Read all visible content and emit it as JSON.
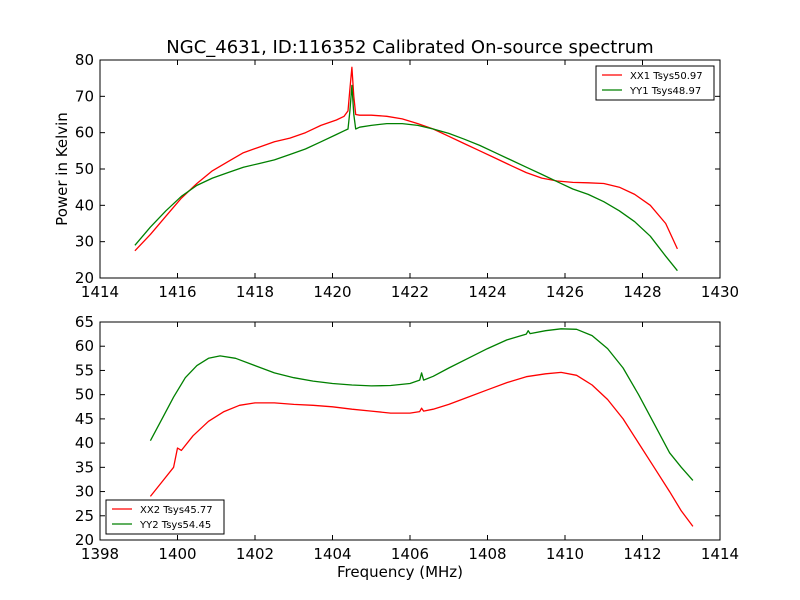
{
  "figure": {
    "title": "NGC_4631, ID:116352 Calibrated On-source spectrum"
  },
  "chart_data": [
    {
      "type": "line",
      "ylabel": "Power in Kelvin",
      "xlabel": "",
      "xlim": [
        1414,
        1430
      ],
      "ylim": [
        20,
        80
      ],
      "xticks": [
        1414,
        1416,
        1418,
        1420,
        1422,
        1424,
        1426,
        1428,
        1430
      ],
      "yticks": [
        20,
        30,
        40,
        50,
        60,
        70,
        80
      ],
      "legend_position": "upper-right",
      "series": [
        {
          "name": "XX1 Tsys50.97",
          "color": "#ff0000",
          "x": [
            1414.9,
            1415.3,
            1415.7,
            1416.1,
            1416.5,
            1416.9,
            1417.3,
            1417.7,
            1418.1,
            1418.5,
            1418.9,
            1419.3,
            1419.7,
            1420.1,
            1420.3,
            1420.4,
            1420.45,
            1420.5,
            1420.55,
            1420.6,
            1420.7,
            1421.0,
            1421.4,
            1421.8,
            1422.2,
            1422.6,
            1423.0,
            1423.4,
            1423.8,
            1424.2,
            1424.6,
            1425.0,
            1425.4,
            1425.8,
            1426.2,
            1426.6,
            1427.0,
            1427.4,
            1427.8,
            1428.2,
            1428.6,
            1428.9
          ],
          "y": [
            27.5,
            32.0,
            37.0,
            42.0,
            46.0,
            49.5,
            52.0,
            54.5,
            56.0,
            57.5,
            58.5,
            60.0,
            62.0,
            63.5,
            64.5,
            66.0,
            72.0,
            78.0,
            70.0,
            65.0,
            64.8,
            64.8,
            64.5,
            63.8,
            62.5,
            61.0,
            59.0,
            57.0,
            55.0,
            53.0,
            51.0,
            49.0,
            47.5,
            46.7,
            46.3,
            46.2,
            46.0,
            45.0,
            43.0,
            40.0,
            35.0,
            28.0
          ]
        },
        {
          "name": "YY1 Tsys48.97",
          "color": "#008000",
          "x": [
            1414.9,
            1415.3,
            1415.7,
            1416.1,
            1416.5,
            1416.9,
            1417.3,
            1417.7,
            1418.1,
            1418.5,
            1418.9,
            1419.3,
            1419.7,
            1420.1,
            1420.3,
            1420.4,
            1420.45,
            1420.5,
            1420.55,
            1420.6,
            1420.7,
            1421.0,
            1421.4,
            1421.8,
            1422.2,
            1422.6,
            1423.0,
            1423.4,
            1423.8,
            1424.2,
            1424.6,
            1425.0,
            1425.4,
            1425.8,
            1426.2,
            1426.6,
            1427.0,
            1427.4,
            1427.8,
            1428.2,
            1428.6,
            1428.9
          ],
          "y": [
            29.0,
            34.0,
            38.5,
            42.5,
            45.5,
            47.5,
            49.0,
            50.5,
            51.5,
            52.5,
            54.0,
            55.5,
            57.5,
            59.5,
            60.5,
            61.0,
            66.0,
            73.0,
            65.0,
            61.0,
            61.5,
            62.0,
            62.5,
            62.5,
            62.0,
            61.0,
            59.8,
            58.2,
            56.5,
            54.5,
            52.5,
            50.5,
            48.5,
            46.5,
            44.5,
            43.0,
            41.0,
            38.5,
            35.5,
            31.5,
            26.0,
            22.0
          ]
        }
      ]
    },
    {
      "type": "line",
      "xlabel": "Frequency (MHz)",
      "ylabel": "",
      "xlim": [
        1398,
        1414
      ],
      "ylim": [
        20,
        65
      ],
      "xticks": [
        1398,
        1400,
        1402,
        1404,
        1406,
        1408,
        1410,
        1412,
        1414
      ],
      "yticks": [
        20,
        25,
        30,
        35,
        40,
        45,
        50,
        55,
        60,
        65
      ],
      "legend_position": "lower-left",
      "series": [
        {
          "name": "XX2 Tsys45.77",
          "color": "#ff0000",
          "x": [
            1399.3,
            1399.6,
            1399.9,
            1400.0,
            1400.1,
            1400.4,
            1400.8,
            1401.2,
            1401.6,
            1402.0,
            1402.5,
            1403.0,
            1403.5,
            1404.0,
            1404.5,
            1405.0,
            1405.5,
            1406.0,
            1406.25,
            1406.3,
            1406.35,
            1406.6,
            1407.0,
            1407.5,
            1408.0,
            1408.5,
            1409.0,
            1409.5,
            1409.9,
            1410.3,
            1410.7,
            1411.1,
            1411.5,
            1411.9,
            1412.3,
            1412.7,
            1413.0,
            1413.3
          ],
          "y": [
            29.0,
            32.0,
            35.0,
            39.0,
            38.5,
            41.5,
            44.5,
            46.5,
            47.8,
            48.3,
            48.3,
            48.0,
            47.8,
            47.5,
            47.0,
            46.6,
            46.2,
            46.2,
            46.5,
            47.2,
            46.6,
            47.0,
            48.0,
            49.5,
            51.0,
            52.5,
            53.7,
            54.3,
            54.6,
            54.0,
            52.0,
            49.0,
            45.0,
            40.0,
            35.0,
            30.0,
            26.0,
            22.8
          ]
        },
        {
          "name": "YY2 Tsys54.45",
          "color": "#008000",
          "x": [
            1399.3,
            1399.6,
            1399.9,
            1400.2,
            1400.5,
            1400.8,
            1401.1,
            1401.5,
            1402.0,
            1402.5,
            1403.0,
            1403.5,
            1404.0,
            1404.5,
            1405.0,
            1405.5,
            1406.0,
            1406.25,
            1406.3,
            1406.35,
            1406.6,
            1407.0,
            1407.5,
            1408.0,
            1408.5,
            1409.0,
            1409.05,
            1409.1,
            1409.5,
            1409.9,
            1410.3,
            1410.7,
            1411.1,
            1411.5,
            1411.9,
            1412.3,
            1412.7,
            1413.0,
            1413.3
          ],
          "y": [
            40.5,
            45.0,
            49.5,
            53.5,
            56.0,
            57.5,
            58.0,
            57.5,
            56.0,
            54.5,
            53.5,
            52.8,
            52.3,
            52.0,
            51.8,
            51.9,
            52.3,
            53.0,
            54.5,
            53.0,
            53.8,
            55.5,
            57.5,
            59.5,
            61.3,
            62.5,
            63.2,
            62.6,
            63.2,
            63.6,
            63.5,
            62.2,
            59.5,
            55.5,
            50.0,
            44.0,
            38.0,
            35.0,
            32.3
          ]
        }
      ]
    }
  ]
}
